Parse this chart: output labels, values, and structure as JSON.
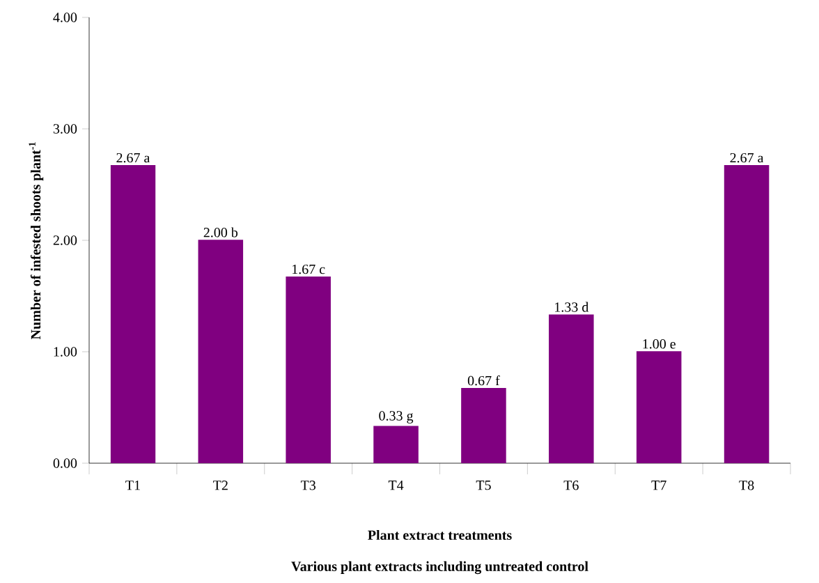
{
  "chart_data": {
    "type": "bar",
    "xlabel": "Plant extract treatments",
    "ylabel": "Number of infested shoots plant$^{-1}$",
    "annotations": [
      "Various plant extracts including untreated control"
    ],
    "categories": [
      "T1",
      "T2",
      "T3",
      "T4",
      "T5",
      "T6",
      "T7",
      "T8"
    ],
    "values": [
      2.67,
      2.0,
      1.67,
      0.33,
      0.67,
      1.33,
      1.0,
      2.67
    ],
    "value_labels": [
      "2.67 a",
      "2.00 b",
      "1.67 c",
      "0.33 g",
      "0.67 f",
      "1.33 d",
      "1.00 e",
      "2.67 a"
    ],
    "color": "#800080",
    "ylim": [
      0,
      4
    ],
    "yticks": [
      {
        "value": 0,
        "label": "0.00"
      },
      {
        "value": 1,
        "label": "1.00"
      },
      {
        "value": 2,
        "label": "2.00"
      },
      {
        "value": 3,
        "label": "3.00"
      },
      {
        "value": 4,
        "label": "4.00"
      }
    ],
    "grid": false
  }
}
